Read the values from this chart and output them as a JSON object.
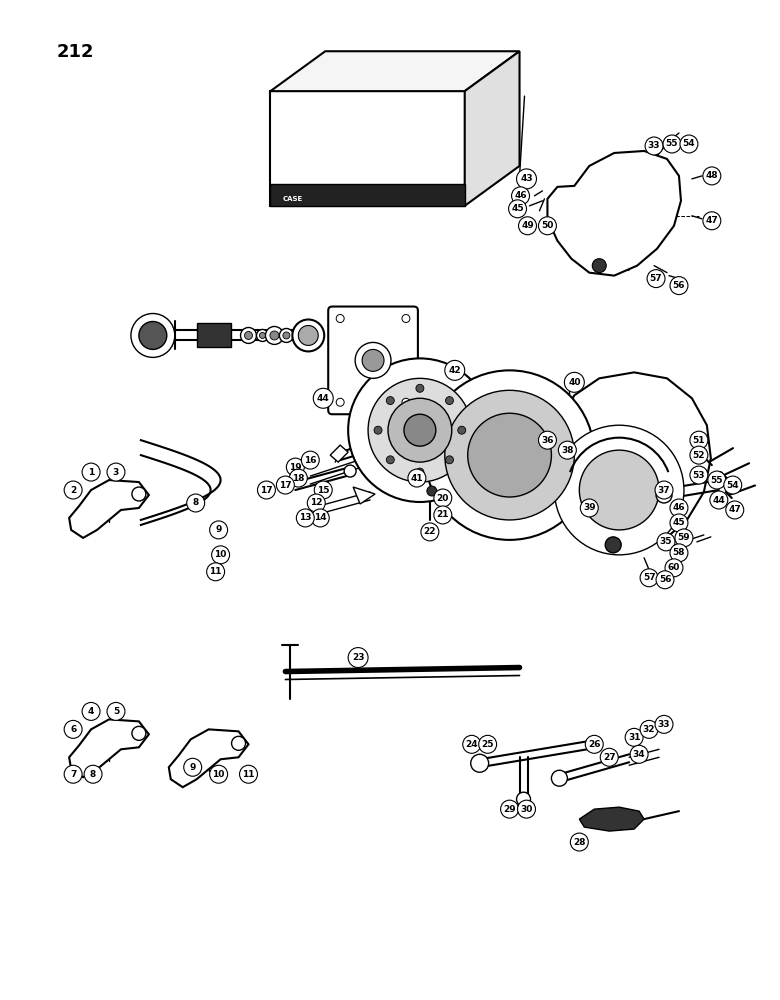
{
  "page_number": "212",
  "bg": "#ffffff",
  "lc": "#000000",
  "fig_w": 7.8,
  "fig_h": 10.0,
  "dpi": 100
}
